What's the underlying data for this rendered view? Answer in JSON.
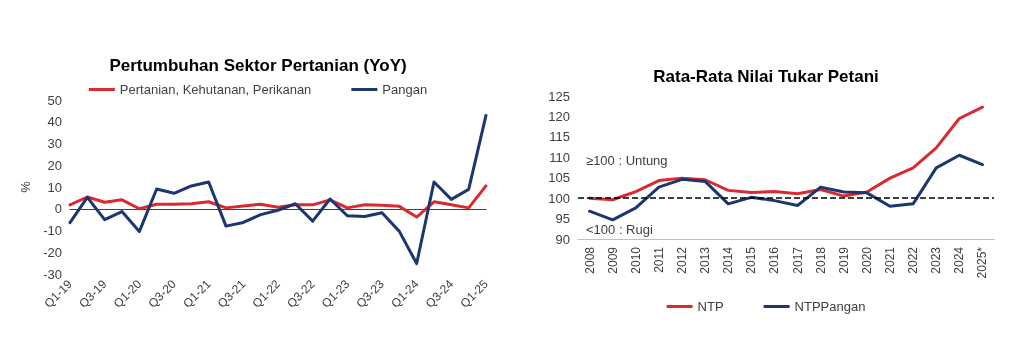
{
  "chart_data": [
    {
      "type": "line",
      "title": "Pertumbuhan Sektor Pertanian (YoY)",
      "ylabel": "%",
      "legend": "top",
      "marker": "none",
      "tick_labels": true,
      "categories": [
        "Q1-19",
        null,
        "Q3-19",
        null,
        "Q1-20",
        null,
        "Q3-20",
        null,
        "Q1-21",
        null,
        "Q3-21",
        null,
        "Q1-22",
        null,
        "Q3-22",
        null,
        "Q1-23",
        null,
        "Q3-23",
        null,
        "Q1-24",
        null,
        "Q3-24",
        null,
        "Q1-25"
      ],
      "ylim": [
        -30,
        50
      ],
      "yticks": [
        -30,
        -20,
        -10,
        0,
        10,
        20,
        30,
        40,
        50
      ],
      "series": [
        {
          "name": "Pertanian, Kehutanan, Perikanan",
          "color": "#d92b2f",
          "values": [
            1.8,
            5.4,
            3,
            4.1,
            0,
            2.1,
            2.1,
            2.3,
            3.2,
            0.4,
            1.3,
            2.1,
            0.7,
            1.8,
            1.8,
            4.1,
            0.4,
            1.8,
            1.6,
            1.1,
            -3.8,
            3.2,
            1.8,
            0.4,
            10.5
          ]
        },
        {
          "name": "Pangan",
          "color": "#1c3770",
          "values": [
            -6.4,
            5.2,
            -5,
            -1.3,
            -10.5,
            9.1,
            7.1,
            10.5,
            12.3,
            -8,
            -6.3,
            -2.7,
            -0.7,
            2.3,
            -5.7,
            4.5,
            -3.2,
            -3.6,
            -1.8,
            -10.4,
            -25.2,
            12.3,
            4.3,
            8.9,
            42.9
          ]
        }
      ]
    },
    {
      "type": "line",
      "title": "Rata-Rata Nilai Tukar Petani",
      "legend": "bottom",
      "marker": "none",
      "categories": [
        "2008",
        "2009",
        "2010",
        "2011",
        "2012",
        "2013",
        "2014",
        "2015",
        "2016",
        "2017",
        "2018",
        "2019",
        "2020",
        "2021",
        "2022",
        "2023",
        "2024",
        "2025*"
      ],
      "ylim": [
        90,
        125
      ],
      "yticks": [
        90,
        95,
        100,
        105,
        110,
        115,
        120,
        125
      ],
      "ref_lines": [
        {
          "axis": "y",
          "value": 100,
          "line_style": "dashed",
          "color": "#000000"
        }
      ],
      "annotations": [
        "≥100 : Untung",
        "<100 : Rugi"
      ],
      "series": [
        {
          "name": "NTP",
          "color": "#d92b2f",
          "values": [
            100,
            99.6,
            101.6,
            104.3,
            104.9,
            104.5,
            101.9,
            101.4,
            101.6,
            101.1,
            102.1,
            100.5,
            101.5,
            104.9,
            107.4,
            112.3,
            119.5,
            122.3
          ]
        },
        {
          "name": "NTPPangan",
          "color": "#1c3770",
          "values": [
            96.8,
            94.7,
            97.6,
            102.7,
            104.6,
            104.1,
            98.6,
            100.2,
            99.4,
            98.2,
            102.7,
            101.5,
            101.3,
            98,
            98.6,
            107.4,
            110.5,
            108.2
          ]
        }
      ]
    }
  ]
}
